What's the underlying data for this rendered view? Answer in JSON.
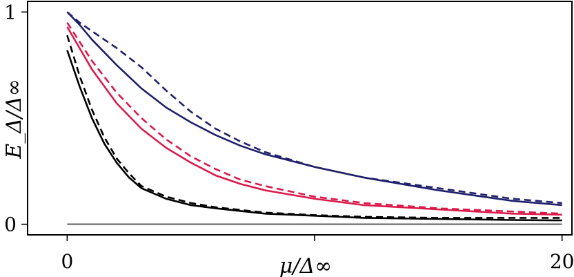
{
  "chart_data": {
    "type": "line",
    "title": "",
    "xlabel": "μ/Δ∞",
    "ylabel": "E_Δ/Δ∞",
    "xlim": [
      -1.6,
      20.4
    ],
    "ylim": [
      -0.05,
      1.05
    ],
    "grid": false,
    "legend": "none",
    "xticks": [
      {
        "value": 0,
        "label": "0"
      },
      {
        "value": 10,
        "label": ""
      },
      {
        "value": 20,
        "label": "20"
      }
    ],
    "yticks": [
      {
        "value": 0,
        "label": "0"
      },
      {
        "value": 1,
        "label": "1"
      }
    ],
    "series": [
      {
        "color": "#1f1f6b",
        "dash": "solid",
        "x": [
          0,
          0.5,
          1,
          2,
          3,
          4,
          5,
          6,
          7,
          8,
          10,
          12,
          15,
          18,
          20
        ],
        "y": [
          1.0,
          0.94,
          0.87,
          0.75,
          0.64,
          0.55,
          0.48,
          0.42,
          0.37,
          0.33,
          0.27,
          0.22,
          0.16,
          0.11,
          0.09
        ]
      },
      {
        "color": "#1f1f6b",
        "dash": "dashed",
        "x": [
          0,
          0.5,
          1,
          2,
          3,
          4,
          5,
          6,
          7,
          8,
          10,
          12,
          15,
          18,
          20
        ],
        "y": [
          1.0,
          0.95,
          0.91,
          0.83,
          0.74,
          0.63,
          0.53,
          0.45,
          0.39,
          0.34,
          0.27,
          0.22,
          0.17,
          0.12,
          0.1
        ]
      },
      {
        "color": "#d91a4b",
        "dash": "solid",
        "x": [
          0,
          0.5,
          1,
          2,
          3,
          4,
          5,
          6,
          7,
          8,
          10,
          12,
          15,
          18,
          20
        ],
        "y": [
          0.93,
          0.83,
          0.73,
          0.57,
          0.45,
          0.36,
          0.29,
          0.23,
          0.19,
          0.16,
          0.12,
          0.09,
          0.07,
          0.05,
          0.045
        ]
      },
      {
        "color": "#d91a4b",
        "dash": "dashed",
        "x": [
          0,
          0.5,
          1,
          2,
          3,
          4,
          5,
          6,
          7,
          8,
          10,
          12,
          15,
          18,
          20
        ],
        "y": [
          0.95,
          0.86,
          0.77,
          0.62,
          0.5,
          0.4,
          0.32,
          0.26,
          0.21,
          0.18,
          0.13,
          0.1,
          0.075,
          0.06,
          0.05
        ]
      },
      {
        "color": "#000000",
        "dash": "solid",
        "x": [
          0,
          0.5,
          1,
          1.5,
          2,
          2.5,
          3,
          4,
          5,
          6,
          8,
          10,
          12,
          15,
          18,
          20
        ],
        "y": [
          0.82,
          0.65,
          0.5,
          0.38,
          0.29,
          0.22,
          0.17,
          0.12,
          0.09,
          0.075,
          0.05,
          0.04,
          0.03,
          0.025,
          0.02,
          0.018
        ]
      },
      {
        "color": "#000000",
        "dash": "dashed",
        "x": [
          0,
          0.5,
          1,
          1.5,
          2,
          2.5,
          3,
          4,
          5,
          6,
          8,
          10,
          12,
          15,
          18,
          20
        ],
        "y": [
          0.89,
          0.7,
          0.54,
          0.41,
          0.31,
          0.24,
          0.18,
          0.13,
          0.1,
          0.08,
          0.055,
          0.043,
          0.035,
          0.03,
          0.03,
          0.03
        ]
      },
      {
        "color": "#808080",
        "dash": "solid",
        "x": [
          0,
          20
        ],
        "y": [
          0,
          0
        ]
      }
    ]
  }
}
